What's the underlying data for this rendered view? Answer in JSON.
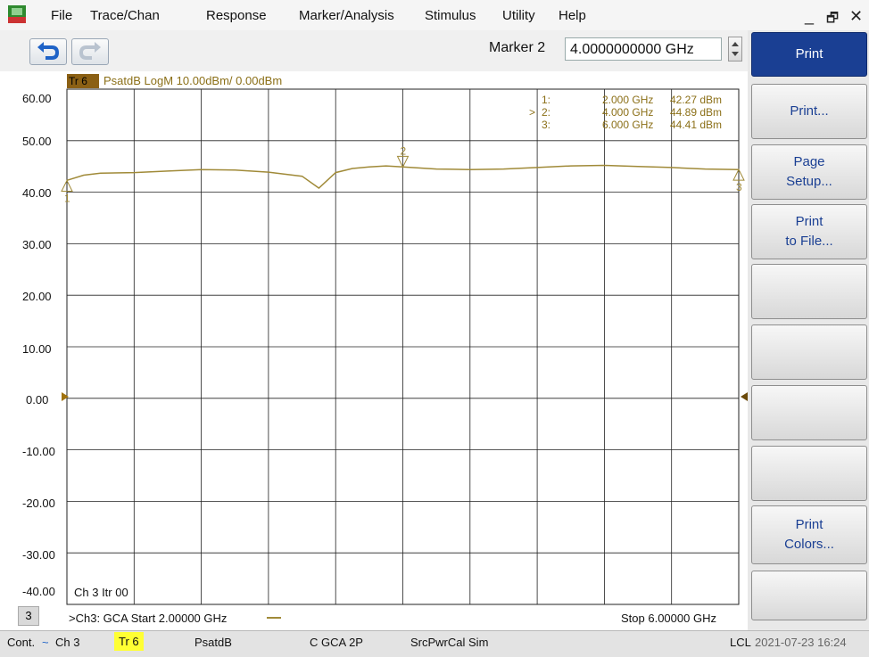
{
  "menu": {
    "items": [
      "File",
      "Trace/Chan",
      "Response",
      "Marker/Analysis",
      "Stimulus",
      "Utility",
      "Help"
    ]
  },
  "window_controls": {
    "minimize": "_",
    "restore": "🗗",
    "close": "✕"
  },
  "toolbar": {
    "undo_icon": "undo-arrow",
    "redo_icon": "redo-arrow",
    "marker_label": "Marker 2",
    "marker_value": "4.0000000000 GHz"
  },
  "softkeys": [
    {
      "lines": [
        "Print"
      ],
      "active": true
    },
    {
      "lines": [
        "Print..."
      ],
      "active": false
    },
    {
      "lines": [
        "Page",
        "Setup..."
      ],
      "active": false
    },
    {
      "lines": [
        "Print",
        "to File..."
      ],
      "active": false
    },
    {
      "lines": [],
      "active": false
    },
    {
      "lines": [],
      "active": false
    },
    {
      "lines": [],
      "active": false
    },
    {
      "lines": [],
      "active": false
    },
    {
      "lines": [
        "Print",
        "Colors..."
      ],
      "active": false
    },
    {
      "lines": [],
      "active": false
    }
  ],
  "trace_header": {
    "tr_label": "Tr 6",
    "description": "PsatdB LogM 10.00dBm/ 0.00dBm"
  },
  "marker_table": [
    {
      "id": "1:",
      "prefix": "",
      "freq": "2.000 GHz",
      "value": "42.27 dBm"
    },
    {
      "id": "2:",
      "prefix": ">",
      "freq": "4.000 GHz",
      "value": "44.89 dBm"
    },
    {
      "id": "3:",
      "prefix": "",
      "freq": "6.000 GHz",
      "value": "44.41 dBm"
    }
  ],
  "plot_footer": {
    "channel_info": "Ch 3  Itr 00",
    "channel_number": "3",
    "start_text": ">Ch3: GCA  Start  2.00000 GHz",
    "stop_text": "Stop  6.00000 GHz"
  },
  "status_bar": {
    "cont": "Cont.",
    "ch": "Ch 3",
    "tr": "Tr 6",
    "param": "PsatdB",
    "gca": "C  GCA 2P",
    "srcpwr": "SrcPwrCal Sim",
    "lcl": "LCL",
    "datetime": "2021-07-23 16:24"
  },
  "chart_data": {
    "type": "line",
    "x_unit": "GHz",
    "xlim": [
      2.0,
      6.0
    ],
    "ylim": [
      -40,
      60
    ],
    "yticks": [
      "60.00",
      "50.00",
      "40.00",
      "30.00",
      "20.00",
      "10.00",
      "0.00",
      "-10.00",
      "-20.00",
      "-30.00",
      "-40.00"
    ],
    "grid": true,
    "reference_level": 0.0,
    "trace_color": "#a08a38",
    "series": [
      {
        "name": "Tr 6",
        "x": [
          2.0,
          2.1,
          2.2,
          2.4,
          2.6,
          2.8,
          3.0,
          3.2,
          3.4,
          3.5,
          3.6,
          3.7,
          3.8,
          3.9,
          4.0,
          4.2,
          4.4,
          4.6,
          4.8,
          5.0,
          5.2,
          5.4,
          5.6,
          5.8,
          6.0
        ],
        "y": [
          42.3,
          43.3,
          43.7,
          43.8,
          44.1,
          44.4,
          44.3,
          43.9,
          43.1,
          40.8,
          43.8,
          44.6,
          44.9,
          45.1,
          44.9,
          44.5,
          44.4,
          44.5,
          44.8,
          45.1,
          45.2,
          45.0,
          44.8,
          44.5,
          44.4
        ]
      }
    ],
    "markers": [
      {
        "label": "1",
        "x": 2.0,
        "y": 42.27
      },
      {
        "label": "2",
        "x": 4.0,
        "y": 44.89
      },
      {
        "label": "3",
        "x": 6.0,
        "y": 44.41
      }
    ]
  }
}
